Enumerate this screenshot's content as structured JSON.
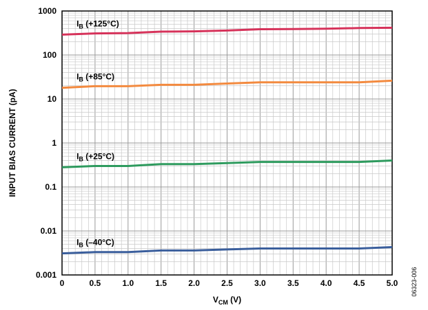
{
  "chart_data": {
    "type": "line",
    "title": "",
    "xlabel_main": "V",
    "xlabel_sub": "CM",
    "xlabel_unit": " (V)",
    "ylabel": "INPUT BIAS CURRENT (pA)",
    "y_scale": "log",
    "xlim": [
      0,
      5
    ],
    "ylim": [
      0.001,
      1000
    ],
    "x_ticks": [
      "0",
      "0.5",
      "1.0",
      "1.5",
      "2.0",
      "2.5",
      "3.0",
      "3.5",
      "4.0",
      "4.5",
      "5.0"
    ],
    "y_ticks": [
      "0.001",
      "0.01",
      "0.1",
      "1",
      "10",
      "100",
      "1000"
    ],
    "figure_id": "06323-006",
    "grid": true,
    "series": [
      {
        "name": "+125°C",
        "label_main": "I",
        "label_sub": "B",
        "label_rest": " (+125°C)",
        "color": "#d6325a",
        "x": [
          0,
          0.5,
          1.0,
          1.5,
          2.0,
          2.5,
          3.0,
          3.5,
          4.0,
          4.5,
          5.0
        ],
        "values": [
          290,
          310,
          315,
          340,
          345,
          360,
          385,
          390,
          395,
          410,
          415
        ]
      },
      {
        "name": "+85°C",
        "label_main": "I",
        "label_sub": "B",
        "label_rest": " (+85°C)",
        "color": "#f38a3f",
        "x": [
          0,
          0.5,
          1.0,
          1.5,
          2.0,
          2.5,
          3.0,
          3.5,
          4.0,
          4.5,
          5.0
        ],
        "values": [
          18,
          19.5,
          19.5,
          21,
          21,
          22.5,
          24,
          24,
          24,
          24,
          26
        ]
      },
      {
        "name": "+25°C",
        "label_main": "I",
        "label_sub": "B",
        "label_rest": " (+25°C)",
        "color": "#2e9b5e",
        "x": [
          0,
          0.5,
          1.0,
          1.5,
          2.0,
          2.5,
          3.0,
          3.5,
          4.0,
          4.5,
          5.0
        ],
        "values": [
          0.28,
          0.3,
          0.3,
          0.33,
          0.33,
          0.35,
          0.37,
          0.37,
          0.37,
          0.37,
          0.4
        ]
      },
      {
        "name": "–40°C",
        "label_main": "I",
        "label_sub": "B",
        "label_rest": " (–40°C)",
        "color": "#3a5e9c",
        "x": [
          0,
          0.5,
          1.0,
          1.5,
          2.0,
          2.5,
          3.0,
          3.5,
          4.0,
          4.5,
          5.0
        ],
        "values": [
          0.0031,
          0.0033,
          0.0033,
          0.0036,
          0.0036,
          0.0038,
          0.004,
          0.004,
          0.004,
          0.004,
          0.0043
        ]
      }
    ]
  }
}
